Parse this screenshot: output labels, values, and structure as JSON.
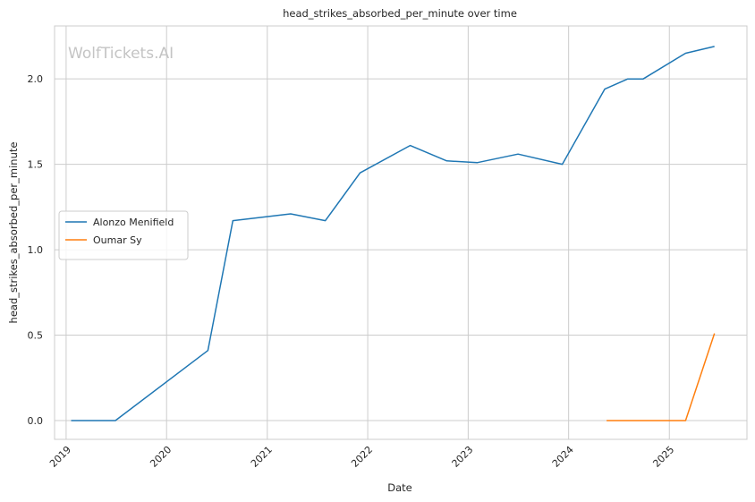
{
  "watermark": "WolfTickets.AI",
  "chart_data": {
    "type": "line",
    "title": "head_strikes_absorbed_per_minute over time",
    "xlabel": "Date",
    "ylabel": "head_strikes_absorbed_per_minute",
    "xlim": [
      "2018-11-20",
      "2025-10-10"
    ],
    "ylim": [
      -0.11,
      2.31
    ],
    "x_ticks": [
      "2019",
      "2020",
      "2021",
      "2022",
      "2023",
      "2024",
      "2025"
    ],
    "y_ticks": [
      "0.0",
      "0.5",
      "1.0",
      "1.5",
      "2.0"
    ],
    "grid": true,
    "legend_position": "center-left",
    "series": [
      {
        "name": "Alonzo Menifield",
        "color": "#1f77b4",
        "x": [
          "2019-01-19",
          "2019-06-29",
          "2020-05-30",
          "2020-08-29",
          "2021-03-27",
          "2021-07-31",
          "2021-12-04",
          "2022-06-04",
          "2022-10-15",
          "2023-02-04",
          "2023-07-01",
          "2023-12-09",
          "2024-05-11",
          "2024-08-03",
          "2024-09-28",
          "2025-03-01",
          "2025-06-14"
        ],
        "y": [
          0.0,
          0.0,
          0.41,
          1.17,
          1.21,
          1.17,
          1.45,
          1.61,
          1.52,
          1.51,
          1.56,
          1.5,
          1.94,
          2.0,
          2.0,
          2.15,
          2.19
        ]
      },
      {
        "name": "Oumar Sy",
        "color": "#ff7f0e",
        "x": [
          "2024-05-18",
          "2025-03-01",
          "2025-06-14"
        ],
        "y": [
          0.0,
          0.0,
          0.51
        ]
      }
    ]
  }
}
